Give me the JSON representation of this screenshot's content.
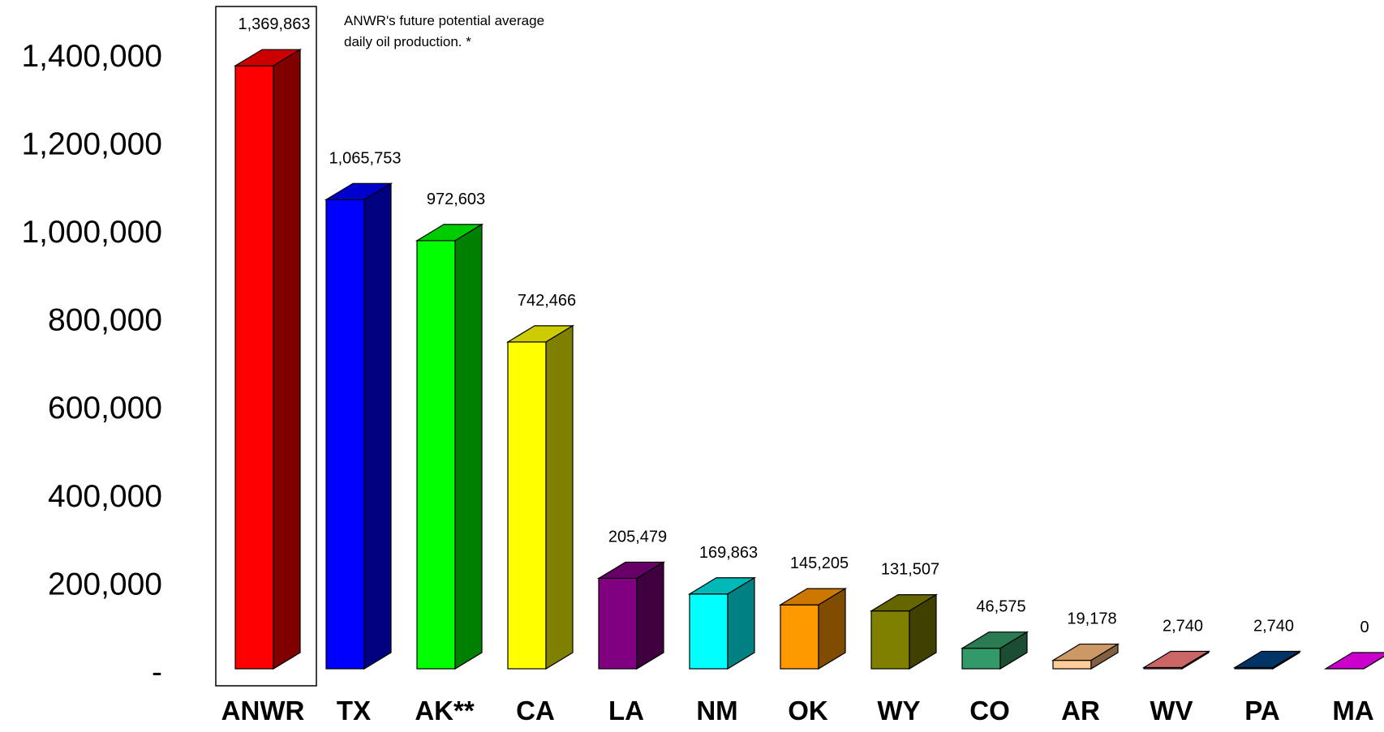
{
  "chart_data": {
    "type": "bar",
    "style": "3d",
    "categories": [
      "ANWR",
      "TX",
      "AK**",
      "CA",
      "LA",
      "NM",
      "OK",
      "WY",
      "CO",
      "AR",
      "WV",
      "PA",
      "MA"
    ],
    "values": [
      1369863,
      1065753,
      972603,
      742466,
      205479,
      169863,
      145205,
      131507,
      46575,
      19178,
      2740,
      2740,
      0
    ],
    "data_labels": [
      "1,369,863",
      "1,065,753",
      "972,603",
      "742,466",
      "205,479",
      "169,863",
      "145,205",
      "131,507",
      "46,575",
      "19,178",
      "2,740",
      "2,740",
      "0"
    ],
    "colors": [
      {
        "front": "#ff0000",
        "top": "#cc0000",
        "side": "#800000"
      },
      {
        "front": "#0000ff",
        "top": "#0000cc",
        "side": "#000080"
      },
      {
        "front": "#00ff00",
        "top": "#00cc00",
        "side": "#008000"
      },
      {
        "front": "#ffff00",
        "top": "#cccc00",
        "side": "#808000"
      },
      {
        "front": "#800080",
        "top": "#660066",
        "side": "#400040"
      },
      {
        "front": "#00ffff",
        "top": "#00b8b8",
        "side": "#008080"
      },
      {
        "front": "#ff9900",
        "top": "#cc7700",
        "side": "#804d00"
      },
      {
        "front": "#808000",
        "top": "#666600",
        "side": "#404000"
      },
      {
        "front": "#339966",
        "top": "#2a7a52",
        "side": "#1a4d33"
      },
      {
        "front": "#ffcc99",
        "top": "#cc9966",
        "side": "#806040"
      },
      {
        "front": "#cc6666",
        "top": "#cc6666",
        "side": "#804040"
      },
      {
        "front": "#003366",
        "top": "#003366",
        "side": "#001a33"
      },
      {
        "front": "#cc00cc",
        "top": "#cc00cc",
        "side": "#800080"
      }
    ],
    "y_ticks": [
      {
        "value": 0,
        "label": "-"
      },
      {
        "value": 200000,
        "label": "200,000"
      },
      {
        "value": 400000,
        "label": "400,000"
      },
      {
        "value": 600000,
        "label": "600,000"
      },
      {
        "value": 800000,
        "label": "800,000"
      },
      {
        "value": 1000000,
        "label": "1,000,000"
      },
      {
        "value": 1200000,
        "label": "1,200,000"
      },
      {
        "value": 1400000,
        "label": "1,400,000"
      }
    ],
    "ylim": [
      0,
      1400000
    ],
    "title": "",
    "xlabel": "",
    "ylabel": "",
    "grid": false,
    "legend": "none",
    "annotation": {
      "lines": [
        "ANWR's future potential average",
        "daily oil production.  *"
      ]
    },
    "highlighted_category": "ANWR"
  }
}
